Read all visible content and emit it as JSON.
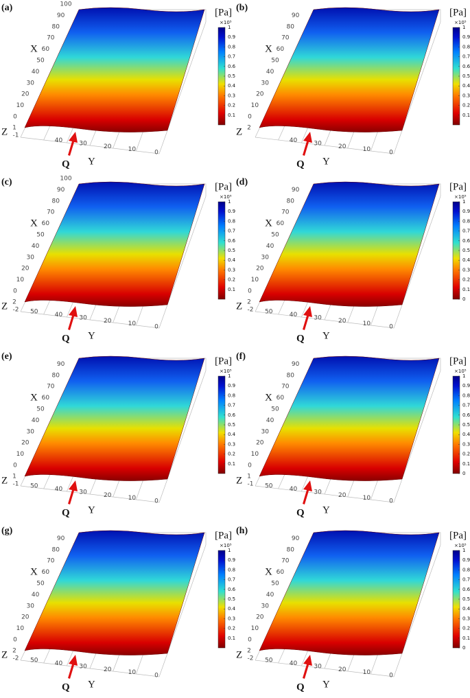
{
  "panels": [
    {
      "label": "(a)",
      "unit": "[Pa]",
      "exponent": "×10⁵",
      "x_name": "X",
      "y_name": "Y",
      "z_name": "Z",
      "marker": "Q",
      "xlim": [
        0,
        100
      ],
      "xticks": [
        0,
        10,
        20,
        30,
        40,
        50,
        60,
        70,
        80,
        90,
        100
      ],
      "ylim": [
        0,
        55
      ],
      "yticks": [
        40,
        30,
        20,
        10,
        0
      ],
      "zticks": [
        1,
        -1
      ],
      "clim": [
        0,
        1
      ],
      "cticks": [
        0.1,
        0.2,
        0.3,
        0.4,
        0.5,
        0.6,
        0.7,
        0.8,
        0.9,
        1
      ]
    },
    {
      "label": "(b)",
      "unit": "[Pa]",
      "exponent": "×10⁵",
      "x_name": "X",
      "y_name": "Y",
      "z_name": "Z",
      "marker": "Q",
      "xlim": [
        0,
        100
      ],
      "xticks": [
        0,
        10,
        20,
        30,
        40,
        50,
        60,
        70,
        80,
        90
      ],
      "ylim": [
        0,
        55
      ],
      "yticks": [
        40,
        30,
        20,
        10,
        0
      ],
      "zticks": [
        2
      ],
      "clim": [
        0,
        1
      ],
      "cticks": [
        0.1,
        0.2,
        0.3,
        0.4,
        0.5,
        0.6,
        0.7,
        0.8,
        0.9,
        1
      ]
    },
    {
      "label": "(c)",
      "unit": "[Pa]",
      "exponent": "×10⁵",
      "x_name": "X",
      "y_name": "Y",
      "z_name": "Z",
      "marker": "Q",
      "xlim": [
        0,
        100
      ],
      "xticks": [
        0,
        10,
        20,
        30,
        40,
        50,
        60,
        70,
        80,
        90,
        100
      ],
      "ylim": [
        0,
        55
      ],
      "yticks": [
        50,
        40,
        30,
        20,
        10,
        0
      ],
      "zticks": [
        2,
        -2
      ],
      "clim": [
        0,
        1
      ],
      "cticks": [
        0.1,
        0.2,
        0.3,
        0.4,
        0.5,
        0.6,
        0.7,
        0.8,
        0.9,
        1
      ]
    },
    {
      "label": "(d)",
      "unit": "[Pa]",
      "exponent": "×10⁵",
      "x_name": "X",
      "y_name": "Y",
      "z_name": "Z",
      "marker": "Q",
      "xlim": [
        0,
        100
      ],
      "xticks": [
        0,
        10,
        20,
        30,
        40,
        50,
        60,
        70,
        80,
        90
      ],
      "ylim": [
        0,
        55
      ],
      "yticks": [
        50,
        40,
        30,
        20,
        10,
        0
      ],
      "zticks": [
        2,
        -2
      ],
      "clim": [
        0,
        1
      ],
      "cticks": [
        0,
        0.1,
        0.2,
        0.3,
        0.4,
        0.5,
        0.6,
        0.7,
        0.8,
        0.9,
        1
      ]
    },
    {
      "label": "(e)",
      "unit": "[Pa]",
      "exponent": "×10⁵",
      "x_name": "X",
      "y_name": "Y",
      "z_name": "Z",
      "marker": "Q",
      "xlim": [
        0,
        100
      ],
      "xticks": [
        0,
        10,
        20,
        30,
        40,
        50,
        60,
        70,
        80,
        90
      ],
      "ylim": [
        0,
        55
      ],
      "yticks": [
        50,
        40,
        30,
        20,
        10,
        0
      ],
      "zticks": [
        1,
        -1
      ],
      "clim": [
        0,
        1
      ],
      "cticks": [
        0.1,
        0.2,
        0.3,
        0.4,
        0.5,
        0.6,
        0.7,
        0.8,
        0.9,
        1
      ]
    },
    {
      "label": "(f)",
      "unit": "[Pa]",
      "exponent": "×10⁵",
      "x_name": "X",
      "y_name": "Y",
      "z_name": "Z",
      "marker": "Q",
      "xlim": [
        0,
        100
      ],
      "xticks": [
        0,
        10,
        20,
        30,
        40,
        50,
        60,
        70,
        80,
        90
      ],
      "ylim": [
        0,
        55
      ],
      "yticks": [
        50,
        40,
        30,
        20,
        10,
        0
      ],
      "zticks": [
        1,
        -1
      ],
      "clim": [
        0,
        1
      ],
      "cticks": [
        0,
        0.1,
        0.2,
        0.3,
        0.4,
        0.5,
        0.6,
        0.7,
        0.8,
        0.9,
        1
      ]
    },
    {
      "label": "(g)",
      "unit": "[Pa]",
      "exponent": "×10⁵",
      "x_name": "X",
      "y_name": "Y",
      "z_name": "Z",
      "marker": "Q",
      "xlim": [
        0,
        100
      ],
      "xticks": [
        0,
        10,
        20,
        30,
        40,
        50,
        60,
        70,
        80,
        90
      ],
      "ylim": [
        0,
        55
      ],
      "yticks": [
        50,
        40,
        30,
        20,
        10,
        0
      ],
      "zticks": [
        2,
        -2
      ],
      "clim": [
        0,
        1
      ],
      "cticks": [
        0.1,
        0.2,
        0.3,
        0.4,
        0.5,
        0.6,
        0.7,
        0.8,
        0.9,
        1
      ]
    },
    {
      "label": "(h)",
      "unit": "[Pa]",
      "exponent": "×10⁵",
      "x_name": "X",
      "y_name": "Y",
      "z_name": "Z",
      "marker": "Q",
      "xlim": [
        0,
        100
      ],
      "xticks": [
        0,
        10,
        20,
        30,
        40,
        50,
        60,
        70,
        80,
        90
      ],
      "ylim": [
        0,
        55
      ],
      "yticks": [
        50,
        40,
        30,
        20,
        10,
        0
      ],
      "zticks": [
        2,
        -2
      ],
      "clim": [
        0,
        1
      ],
      "cticks": [
        0,
        0.1,
        0.2,
        0.3,
        0.4,
        0.5,
        0.6,
        0.7,
        0.8,
        0.9,
        1
      ]
    }
  ]
}
